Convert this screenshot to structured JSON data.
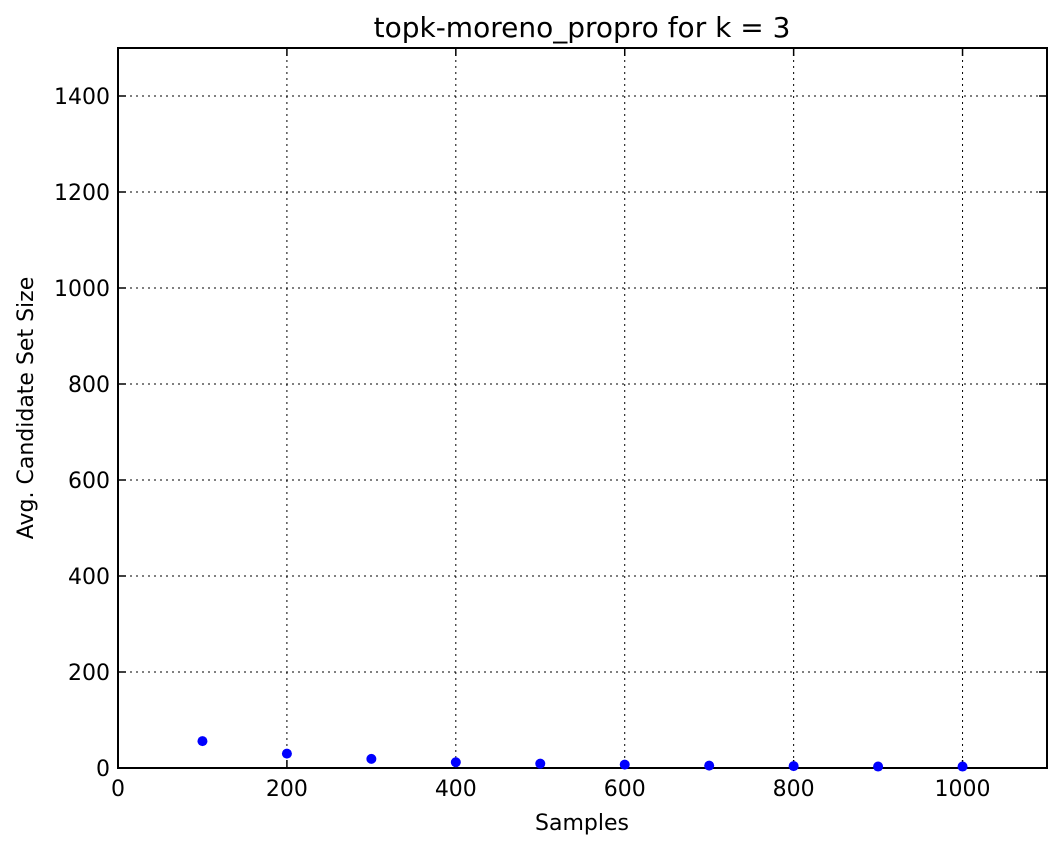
{
  "chart_data": {
    "type": "scatter",
    "title": "topk-moreno_propro for k = 3",
    "xlabel": "Samples",
    "ylabel": "Avg. Candidate Set Size",
    "xlim": [
      0,
      1100
    ],
    "ylim": [
      0,
      1500
    ],
    "xticks": [
      0,
      200,
      400,
      600,
      800,
      1000
    ],
    "yticks": [
      0,
      200,
      400,
      600,
      800,
      1000,
      1200,
      1400
    ],
    "grid": true,
    "series": [
      {
        "name": "avg candidate set size",
        "color": "#0000ff",
        "x": [
          100,
          200,
          300,
          400,
          500,
          600,
          700,
          800,
          900,
          1000
        ],
        "y": [
          56,
          30,
          19,
          12,
          9,
          7,
          5,
          4,
          3,
          3
        ]
      }
    ]
  }
}
